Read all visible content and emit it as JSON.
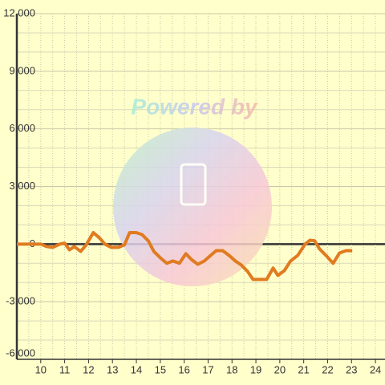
{
  "chart_data": {
    "type": "line",
    "x": [
      9,
      10,
      10.25,
      10.5,
      10.8,
      11,
      11.2,
      11.4,
      11.67,
      11.9,
      12.2,
      12.45,
      12.68,
      12.95,
      13.25,
      13.5,
      13.72,
      13.99,
      14.23,
      14.5,
      14.73,
      15,
      15.27,
      15.53,
      15.8,
      16.07,
      16.3,
      16.57,
      16.84,
      17.07,
      17.34,
      17.61,
      17.88,
      18.14,
      18.38,
      18.65,
      18.88,
      19.18,
      19.45,
      19.72,
      19.92,
      20.19,
      20.45,
      20.75,
      21.06,
      21.26,
      21.46,
      21.66,
      21.93,
      22.23,
      22.5,
      22.77,
      23.03
    ],
    "series": [
      {
        "color": "#e07b20",
        "values": [
          0,
          0,
          -130,
          -170,
          0,
          50,
          -300,
          -130,
          -380,
          -40,
          600,
          330,
          0,
          -170,
          -170,
          -40,
          600,
          600,
          500,
          170,
          -380,
          -710,
          -1000,
          -880,
          -1000,
          -500,
          -800,
          -1050,
          -880,
          -630,
          -340,
          -340,
          -590,
          -880,
          -1080,
          -1420,
          -1840,
          -1840,
          -1840,
          -1250,
          -1630,
          -1380,
          -880,
          -590,
          0,
          200,
          170,
          -250,
          -590,
          -1000,
          -460,
          -340,
          -340
        ]
      }
    ],
    "xlim": [
      9,
      24.4
    ],
    "ylim": [
      -6000,
      12000
    ],
    "xticks": [
      10,
      11,
      12,
      13,
      14,
      15,
      16,
      17,
      18,
      19,
      20,
      21,
      22,
      23,
      24
    ],
    "x_minor_ticks": [
      9.5,
      10.5,
      11.5,
      12.5,
      13.5,
      14.5,
      15.5,
      16.5,
      17.5,
      18.5,
      19.5,
      20.5,
      21.5,
      22.5,
      23.5
    ],
    "yticks": [
      {
        "value": -6000,
        "label": "-6,000"
      },
      {
        "value": -3000,
        "label": "-3,000"
      },
      0,
      {
        "value": 3000,
        "label": "3,000"
      },
      {
        "value": 6000,
        "label": "6,000"
      },
      {
        "value": 9000,
        "label": "9,000"
      },
      {
        "value": 12000,
        "label": "12,000"
      }
    ],
    "y_minor_ticks": [
      -5000,
      -4000,
      -2000,
      -1000,
      1000,
      2000,
      4000,
      5000,
      7000,
      8000,
      10000,
      11000
    ],
    "grid": true,
    "watermark": "Powered by"
  }
}
